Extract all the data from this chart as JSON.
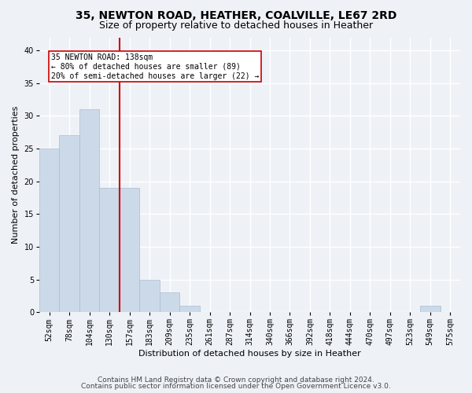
{
  "title": "35, NEWTON ROAD, HEATHER, COALVILLE, LE67 2RD",
  "subtitle": "Size of property relative to detached houses in Heather",
  "xlabel": "Distribution of detached houses by size in Heather",
  "ylabel": "Number of detached properties",
  "bar_color": "#ccd9e8",
  "bar_edge_color": "#aabcce",
  "categories": [
    "52sqm",
    "78sqm",
    "104sqm",
    "130sqm",
    "157sqm",
    "183sqm",
    "209sqm",
    "235sqm",
    "261sqm",
    "287sqm",
    "314sqm",
    "340sqm",
    "366sqm",
    "392sqm",
    "418sqm",
    "444sqm",
    "470sqm",
    "497sqm",
    "523sqm",
    "549sqm",
    "575sqm"
  ],
  "values": [
    25,
    27,
    31,
    19,
    19,
    5,
    3,
    1,
    0,
    0,
    0,
    0,
    0,
    0,
    0,
    0,
    0,
    0,
    0,
    1,
    0
  ],
  "ylim": [
    0,
    42
  ],
  "yticks": [
    0,
    5,
    10,
    15,
    20,
    25,
    30,
    35,
    40
  ],
  "vline_x_index": 3,
  "vline_color": "#cc0000",
  "annotation_line1": "35 NEWTON ROAD: 138sqm",
  "annotation_line2": "← 80% of detached houses are smaller (89)",
  "annotation_line3": "20% of semi-detached houses are larger (22) →",
  "annotation_box_color": "#ffffff",
  "annotation_box_edge": "#cc0000",
  "footer_line1": "Contains HM Land Registry data © Crown copyright and database right 2024.",
  "footer_line2": "Contains public sector information licensed under the Open Government Licence v3.0.",
  "background_color": "#eef2f7",
  "grid_color": "#ffffff",
  "title_fontsize": 10,
  "subtitle_fontsize": 9,
  "ylabel_fontsize": 8,
  "xlabel_fontsize": 8,
  "tick_fontsize": 7,
  "annotation_fontsize": 7,
  "footer_fontsize": 6.5
}
